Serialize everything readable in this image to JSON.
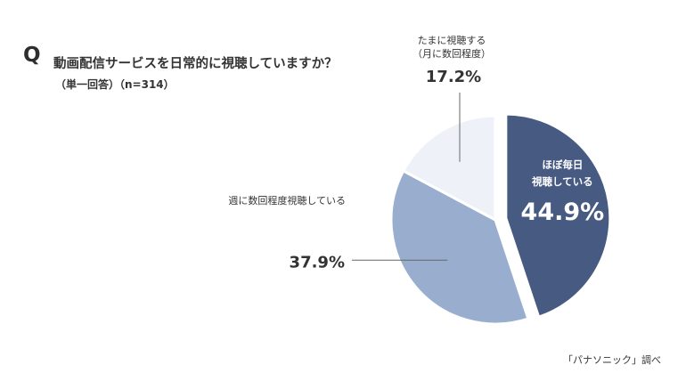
{
  "header": {
    "q_mark": "Q",
    "question": "動画配信サービスを日常的に視聴していますか？",
    "note": "（単一回答）（n=314）"
  },
  "source": "「パナソニック」調べ",
  "chart_data": {
    "type": "pie",
    "slices": [
      {
        "label_lines": [
          "ほぼ毎日",
          "視聴している"
        ],
        "value": 44.9,
        "value_label": "44.9%",
        "color": "#465a82",
        "exploded": true
      },
      {
        "label_lines": [
          "週に数回程度視聴している"
        ],
        "value": 37.9,
        "value_label": "37.9%",
        "color": "#99aecf",
        "exploded": false
      },
      {
        "label_lines": [
          "たまに視聴する",
          "（月に数回程度）"
        ],
        "value": 17.2,
        "value_label": "17.2%",
        "color": "#eef1f7",
        "exploded": false
      }
    ]
  }
}
